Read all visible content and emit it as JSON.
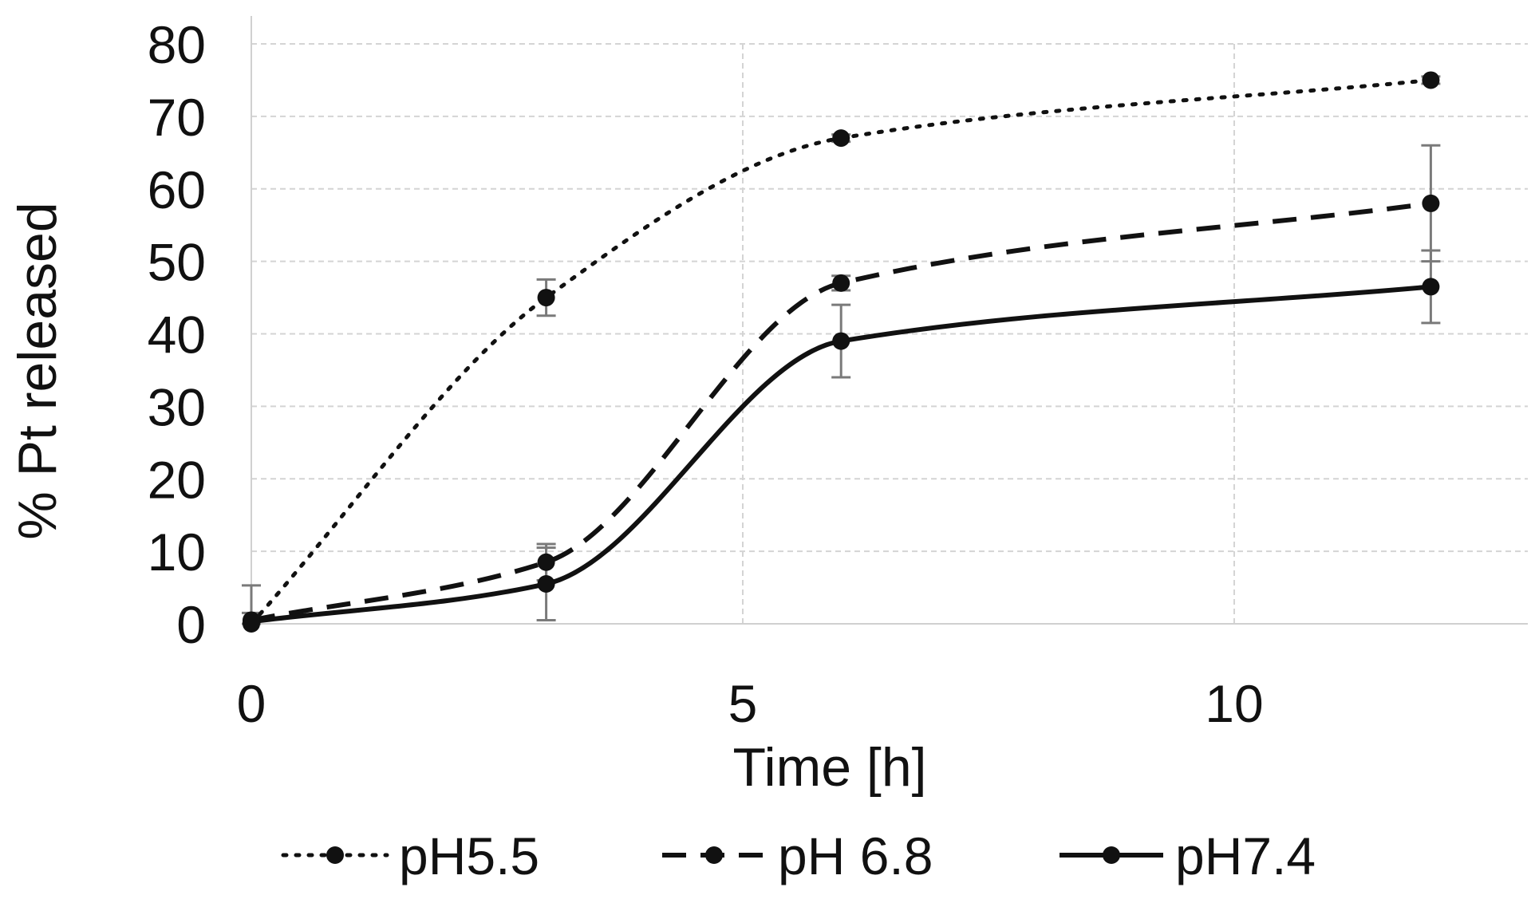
{
  "chart_data": {
    "type": "line",
    "title": "",
    "xlabel": "Time [h]",
    "ylabel": "% Pt released",
    "xlim": [
      0,
      13.0
    ],
    "ylim": [
      0,
      80
    ],
    "x_ticks": [
      0,
      5,
      10
    ],
    "y_ticks": [
      0,
      10,
      20,
      30,
      40,
      50,
      60,
      70,
      80
    ],
    "grid": true,
    "grid_style": "dashed",
    "legend_position": "bottom",
    "series": [
      {
        "name": "pH5.5",
        "line_style": "dotted",
        "color": "#111111",
        "x": [
          0,
          3,
          6,
          12
        ],
        "y": [
          0,
          45,
          67,
          75
        ],
        "error": [
          0,
          2.5,
          0.5,
          0.5
        ]
      },
      {
        "name": "pH 6.8",
        "line_style": "dashed",
        "color": "#111111",
        "x": [
          0,
          3,
          6,
          12
        ],
        "y": [
          0.5,
          8.5,
          47,
          58
        ],
        "error": [
          1.0,
          2.5,
          1.0,
          8.0
        ]
      },
      {
        "name": "pH7.4",
        "line_style": "solid",
        "color": "#111111",
        "x": [
          0,
          3,
          6,
          12
        ],
        "y": [
          0.3,
          5.5,
          39,
          46.5
        ],
        "error": [
          5.0,
          5.0,
          5.0,
          5.0
        ]
      }
    ]
  }
}
